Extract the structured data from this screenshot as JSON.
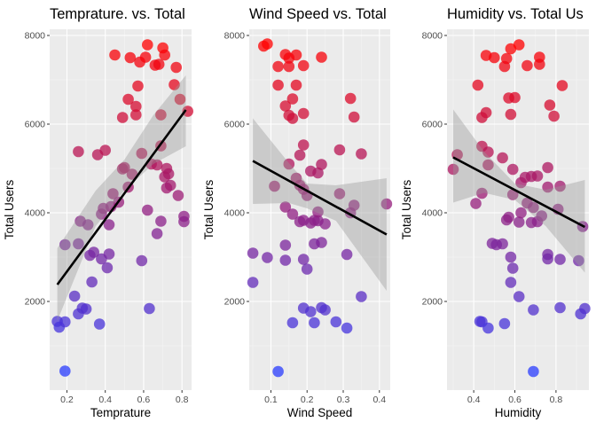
{
  "chart_data": [
    {
      "type": "scatter",
      "title": "Temprature. vs. Total",
      "xlabel": "Temprature",
      "ylabel": "Total Users",
      "xlim": [
        0.11,
        0.85
      ],
      "ylim": [
        0,
        8000
      ],
      "xticks": [
        0.2,
        0.4,
        0.6,
        0.8
      ],
      "xtick_labels": [
        "0.2",
        "0.4",
        "0.6",
        "0.8"
      ],
      "yticks": [
        2000,
        4000,
        6000,
        8000
      ],
      "ytick_labels": [
        "2000",
        "4000",
        "6000",
        "8000"
      ],
      "grid": true,
      "trend": {
        "x0": 0.15,
        "y0": 2380,
        "x1": 0.82,
        "y1": 6320,
        "band": [
          [
            0.15,
            1560,
            3200
          ],
          [
            0.35,
            3700,
            4500
          ],
          [
            0.5,
            4500,
            5200
          ],
          [
            0.65,
            5100,
            6200
          ],
          [
            0.82,
            5500,
            7100
          ]
        ]
      },
      "points": [
        {
          "x": 0.19,
          "y": 430
        },
        {
          "x": 0.15,
          "y": 1550
        },
        {
          "x": 0.16,
          "y": 1420
        },
        {
          "x": 0.19,
          "y": 1540
        },
        {
          "x": 0.26,
          "y": 1720
        },
        {
          "x": 0.28,
          "y": 1850
        },
        {
          "x": 0.3,
          "y": 1830
        },
        {
          "x": 0.37,
          "y": 1490
        },
        {
          "x": 0.63,
          "y": 1840
        },
        {
          "x": 0.24,
          "y": 2120
        },
        {
          "x": 0.33,
          "y": 2440
        },
        {
          "x": 0.38,
          "y": 2960
        },
        {
          "x": 0.41,
          "y": 2760
        },
        {
          "x": 0.59,
          "y": 2920
        },
        {
          "x": 0.42,
          "y": 3070
        },
        {
          "x": 0.32,
          "y": 3040
        },
        {
          "x": 0.34,
          "y": 3110
        },
        {
          "x": 0.19,
          "y": 3280
        },
        {
          "x": 0.26,
          "y": 3300
        },
        {
          "x": 0.27,
          "y": 3810
        },
        {
          "x": 0.31,
          "y": 3730
        },
        {
          "x": 0.38,
          "y": 3970
        },
        {
          "x": 0.39,
          "y": 4100
        },
        {
          "x": 0.43,
          "y": 4140
        },
        {
          "x": 0.42,
          "y": 3730
        },
        {
          "x": 0.44,
          "y": 4430
        },
        {
          "x": 0.47,
          "y": 4240
        },
        {
          "x": 0.52,
          "y": 4580
        },
        {
          "x": 0.62,
          "y": 4060
        },
        {
          "x": 0.69,
          "y": 3810
        },
        {
          "x": 0.67,
          "y": 3530
        },
        {
          "x": 0.72,
          "y": 4560
        },
        {
          "x": 0.71,
          "y": 4810
        },
        {
          "x": 0.78,
          "y": 4390
        },
        {
          "x": 0.81,
          "y": 3920
        },
        {
          "x": 0.81,
          "y": 3800
        },
        {
          "x": 0.26,
          "y": 5380
        },
        {
          "x": 0.36,
          "y": 5310
        },
        {
          "x": 0.4,
          "y": 5410
        },
        {
          "x": 0.49,
          "y": 4990
        },
        {
          "x": 0.5,
          "y": 5020
        },
        {
          "x": 0.54,
          "y": 4870
        },
        {
          "x": 0.59,
          "y": 5340
        },
        {
          "x": 0.64,
          "y": 5100
        },
        {
          "x": 0.67,
          "y": 5080
        },
        {
          "x": 0.69,
          "y": 5510
        },
        {
          "x": 0.72,
          "y": 5000
        },
        {
          "x": 0.73,
          "y": 4880
        },
        {
          "x": 0.74,
          "y": 4620
        },
        {
          "x": 0.49,
          "y": 6150
        },
        {
          "x": 0.52,
          "y": 6560
        },
        {
          "x": 0.56,
          "y": 6400
        },
        {
          "x": 0.56,
          "y": 6210
        },
        {
          "x": 0.57,
          "y": 6860
        },
        {
          "x": 0.69,
          "y": 6210
        },
        {
          "x": 0.76,
          "y": 6890
        },
        {
          "x": 0.79,
          "y": 6560
        },
        {
          "x": 0.83,
          "y": 6290
        },
        {
          "x": 0.45,
          "y": 7560
        },
        {
          "x": 0.53,
          "y": 7500
        },
        {
          "x": 0.58,
          "y": 7400
        },
        {
          "x": 0.61,
          "y": 7510
        },
        {
          "x": 0.62,
          "y": 7790
        },
        {
          "x": 0.66,
          "y": 7330
        },
        {
          "x": 0.68,
          "y": 7350
        },
        {
          "x": 0.7,
          "y": 7720
        },
        {
          "x": 0.71,
          "y": 7560
        },
        {
          "x": 0.77,
          "y": 7280
        }
      ]
    },
    {
      "type": "scatter",
      "title": "Wind Speed vs. Total",
      "xlabel": "Wind Speed",
      "ylabel": "Total Users",
      "xlim": [
        0.04,
        0.43
      ],
      "ylim": [
        0,
        8000
      ],
      "xticks": [
        0.1,
        0.2,
        0.3,
        0.4
      ],
      "xtick_labels": [
        "0.1",
        "0.2",
        "0.3",
        "0.4"
      ],
      "yticks": [
        2000,
        4000,
        6000,
        8000
      ],
      "ytick_labels": [
        "2000",
        "4000",
        "6000",
        "8000"
      ],
      "grid": true,
      "trend": {
        "x0": 0.05,
        "y0": 5170,
        "x1": 0.42,
        "y1": 3510,
        "band": [
          [
            0.05,
            4200,
            6130
          ],
          [
            0.15,
            4220,
            5120
          ],
          [
            0.2,
            4100,
            4660
          ],
          [
            0.28,
            3820,
            4620
          ],
          [
            0.42,
            2240,
            4780
          ]
        ]
      },
      "points": [
        {
          "x": 0.12,
          "y": 420
        },
        {
          "x": 0.08,
          "y": 7760
        },
        {
          "x": 0.09,
          "y": 7810
        },
        {
          "x": 0.12,
          "y": 7300
        },
        {
          "x": 0.14,
          "y": 7570
        },
        {
          "x": 0.15,
          "y": 7490
        },
        {
          "x": 0.15,
          "y": 7300
        },
        {
          "x": 0.17,
          "y": 7560
        },
        {
          "x": 0.19,
          "y": 7320
        },
        {
          "x": 0.24,
          "y": 7510
        },
        {
          "x": 0.12,
          "y": 6880
        },
        {
          "x": 0.17,
          "y": 6880
        },
        {
          "x": 0.14,
          "y": 6410
        },
        {
          "x": 0.16,
          "y": 6570
        },
        {
          "x": 0.15,
          "y": 6200
        },
        {
          "x": 0.16,
          "y": 6130
        },
        {
          "x": 0.19,
          "y": 6240
        },
        {
          "x": 0.32,
          "y": 6580
        },
        {
          "x": 0.33,
          "y": 6160
        },
        {
          "x": 0.19,
          "y": 5530
        },
        {
          "x": 0.18,
          "y": 5300
        },
        {
          "x": 0.15,
          "y": 5100
        },
        {
          "x": 0.21,
          "y": 4940
        },
        {
          "x": 0.23,
          "y": 4900
        },
        {
          "x": 0.24,
          "y": 5090
        },
        {
          "x": 0.29,
          "y": 5420
        },
        {
          "x": 0.35,
          "y": 5330
        },
        {
          "x": 0.11,
          "y": 4600
        },
        {
          "x": 0.17,
          "y": 4780
        },
        {
          "x": 0.18,
          "y": 4620
        },
        {
          "x": 0.19,
          "y": 4530
        },
        {
          "x": 0.2,
          "y": 4390
        },
        {
          "x": 0.14,
          "y": 4130
        },
        {
          "x": 0.16,
          "y": 3970
        },
        {
          "x": 0.19,
          "y": 3830
        },
        {
          "x": 0.18,
          "y": 3800
        },
        {
          "x": 0.21,
          "y": 3770
        },
        {
          "x": 0.22,
          "y": 3830
        },
        {
          "x": 0.23,
          "y": 3820
        },
        {
          "x": 0.23,
          "y": 4020
        },
        {
          "x": 0.25,
          "y": 3750
        },
        {
          "x": 0.29,
          "y": 4430
        },
        {
          "x": 0.32,
          "y": 4000
        },
        {
          "x": 0.33,
          "y": 4170
        },
        {
          "x": 0.42,
          "y": 4200
        },
        {
          "x": 0.14,
          "y": 3270
        },
        {
          "x": 0.22,
          "y": 3300
        },
        {
          "x": 0.24,
          "y": 3330
        },
        {
          "x": 0.05,
          "y": 3090
        },
        {
          "x": 0.09,
          "y": 2990
        },
        {
          "x": 0.14,
          "y": 2930
        },
        {
          "x": 0.19,
          "y": 2950
        },
        {
          "x": 0.2,
          "y": 2730
        },
        {
          "x": 0.31,
          "y": 3060
        },
        {
          "x": 0.05,
          "y": 2430
        },
        {
          "x": 0.35,
          "y": 2110
        },
        {
          "x": 0.19,
          "y": 1850
        },
        {
          "x": 0.21,
          "y": 1770
        },
        {
          "x": 0.24,
          "y": 1860
        },
        {
          "x": 0.25,
          "y": 1810
        },
        {
          "x": 0.16,
          "y": 1520
        },
        {
          "x": 0.22,
          "y": 1520
        },
        {
          "x": 0.28,
          "y": 1540
        },
        {
          "x": 0.31,
          "y": 1400
        }
      ]
    },
    {
      "type": "scatter",
      "title": "Humidity vs. Total Us",
      "xlabel": "Humidity",
      "ylabel": "Total Users",
      "xlim": [
        0.27,
        0.96
      ],
      "ylim": [
        0,
        8000
      ],
      "xticks": [
        0.4,
        0.6,
        0.8
      ],
      "xtick_labels": [
        "0.4",
        "0.6",
        "0.8"
      ],
      "yticks": [
        2000,
        4000,
        6000,
        8000
      ],
      "ytick_labels": [
        "2000",
        "4000",
        "6000",
        "8000"
      ],
      "grid": true,
      "trend": {
        "x0": 0.3,
        "y0": 5250,
        "x1": 0.94,
        "y1": 3680,
        "band": [
          [
            0.3,
            4230,
            6330
          ],
          [
            0.45,
            4450,
            5380
          ],
          [
            0.6,
            4290,
            4660
          ],
          [
            0.75,
            3700,
            4520
          ],
          [
            0.94,
            2650,
            4740
          ]
        ]
      },
      "points": [
        {
          "x": 0.69,
          "y": 420
        },
        {
          "x": 0.46,
          "y": 7550
        },
        {
          "x": 0.5,
          "y": 7500
        },
        {
          "x": 0.56,
          "y": 7480
        },
        {
          "x": 0.58,
          "y": 7700
        },
        {
          "x": 0.62,
          "y": 7790
        },
        {
          "x": 0.66,
          "y": 7320
        },
        {
          "x": 0.72,
          "y": 7510
        },
        {
          "x": 0.72,
          "y": 7350
        },
        {
          "x": 0.55,
          "y": 7300
        },
        {
          "x": 0.42,
          "y": 6880
        },
        {
          "x": 0.46,
          "y": 6260
        },
        {
          "x": 0.44,
          "y": 6150
        },
        {
          "x": 0.57,
          "y": 6590
        },
        {
          "x": 0.6,
          "y": 6600
        },
        {
          "x": 0.58,
          "y": 6220
        },
        {
          "x": 0.77,
          "y": 6430
        },
        {
          "x": 0.79,
          "y": 6180
        },
        {
          "x": 0.83,
          "y": 6870
        },
        {
          "x": 0.3,
          "y": 4980
        },
        {
          "x": 0.32,
          "y": 5310
        },
        {
          "x": 0.44,
          "y": 5500
        },
        {
          "x": 0.47,
          "y": 5370
        },
        {
          "x": 0.47,
          "y": 5080
        },
        {
          "x": 0.54,
          "y": 5240
        },
        {
          "x": 0.59,
          "y": 4980
        },
        {
          "x": 0.63,
          "y": 4680
        },
        {
          "x": 0.65,
          "y": 4800
        },
        {
          "x": 0.68,
          "y": 4820
        },
        {
          "x": 0.71,
          "y": 4830
        },
        {
          "x": 0.76,
          "y": 5020
        },
        {
          "x": 0.76,
          "y": 4580
        },
        {
          "x": 0.82,
          "y": 4600
        },
        {
          "x": 0.41,
          "y": 4210
        },
        {
          "x": 0.44,
          "y": 4440
        },
        {
          "x": 0.56,
          "y": 3840
        },
        {
          "x": 0.57,
          "y": 3900
        },
        {
          "x": 0.59,
          "y": 4410
        },
        {
          "x": 0.62,
          "y": 3790
        },
        {
          "x": 0.63,
          "y": 4000
        },
        {
          "x": 0.66,
          "y": 4220
        },
        {
          "x": 0.69,
          "y": 4120
        },
        {
          "x": 0.68,
          "y": 3780
        },
        {
          "x": 0.71,
          "y": 3800
        },
        {
          "x": 0.73,
          "y": 3930
        },
        {
          "x": 0.81,
          "y": 4080
        },
        {
          "x": 0.93,
          "y": 3690
        },
        {
          "x": 0.49,
          "y": 3310
        },
        {
          "x": 0.51,
          "y": 3280
        },
        {
          "x": 0.54,
          "y": 3300
        },
        {
          "x": 0.58,
          "y": 3000
        },
        {
          "x": 0.59,
          "y": 2750
        },
        {
          "x": 0.76,
          "y": 3060
        },
        {
          "x": 0.76,
          "y": 2960
        },
        {
          "x": 0.82,
          "y": 2950
        },
        {
          "x": 0.91,
          "y": 2920
        },
        {
          "x": 0.58,
          "y": 2430
        },
        {
          "x": 0.62,
          "y": 2110
        },
        {
          "x": 0.43,
          "y": 1550
        },
        {
          "x": 0.44,
          "y": 1540
        },
        {
          "x": 0.47,
          "y": 1400
        },
        {
          "x": 0.55,
          "y": 1500
        },
        {
          "x": 0.69,
          "y": 1810
        },
        {
          "x": 0.82,
          "y": 1860
        },
        {
          "x": 0.92,
          "y": 1720
        },
        {
          "x": 0.94,
          "y": 1840
        }
      ]
    }
  ]
}
